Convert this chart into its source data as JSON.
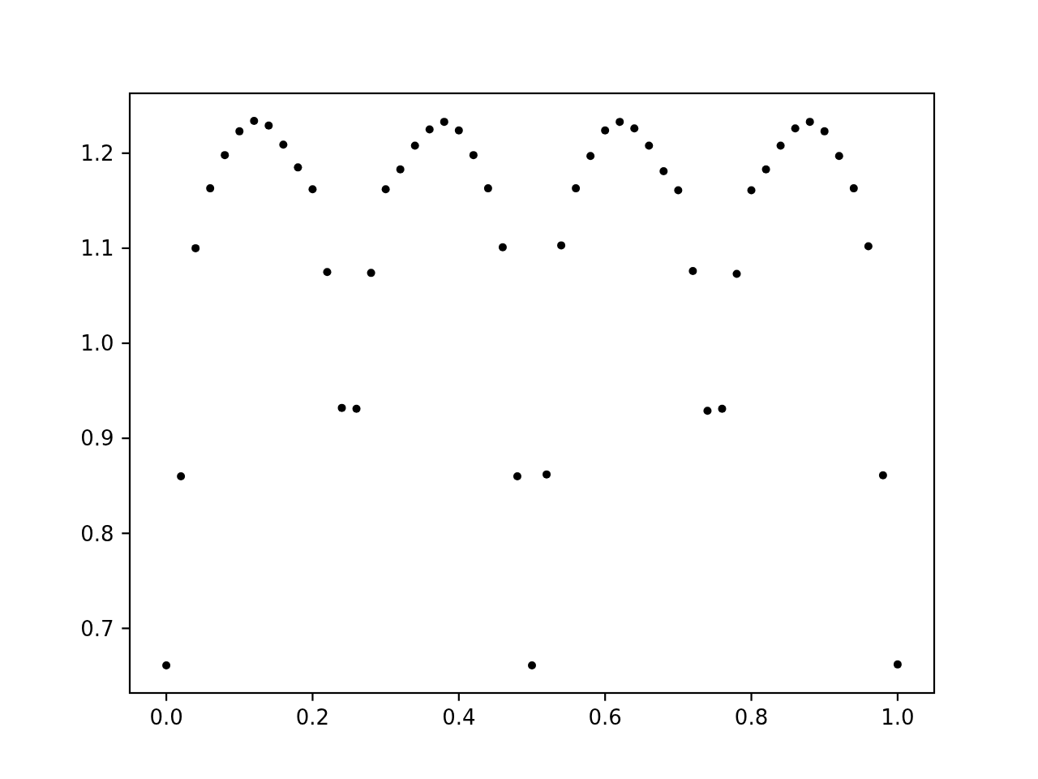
{
  "chart_data": {
    "type": "scatter",
    "marker": "circle",
    "color": "#000000",
    "x": [
      0,
      0.02,
      0.04,
      0.06,
      0.08,
      0.1,
      0.12,
      0.14,
      0.16,
      0.18,
      0.2,
      0.22,
      0.24,
      0.26,
      0.28,
      0.3,
      0.32,
      0.34,
      0.36,
      0.38,
      0.4,
      0.42,
      0.44,
      0.46,
      0.48,
      0.5,
      0.52,
      0.54,
      0.56,
      0.58,
      0.6,
      0.62,
      0.64,
      0.66,
      0.68,
      0.7,
      0.72,
      0.74,
      0.76,
      0.78,
      0.8,
      0.82,
      0.84,
      0.86,
      0.88,
      0.9,
      0.92,
      0.94,
      0.96,
      0.98,
      1
    ],
    "values": [
      0.661,
      0.86,
      1.1,
      1.163,
      1.198,
      1.223,
      1.234,
      1.229,
      1.209,
      1.185,
      1.162,
      1.075,
      0.932,
      0.931,
      1.074,
      1.162,
      1.183,
      1.208,
      1.225,
      1.233,
      1.224,
      1.198,
      1.163,
      1.101,
      0.86,
      0.661,
      0.862,
      1.103,
      1.163,
      1.197,
      1.224,
      1.233,
      1.226,
      1.208,
      1.181,
      1.161,
      1.076,
      0.929,
      0.931,
      1.073,
      1.161,
      1.183,
      1.208,
      1.226,
      1.233,
      1.223,
      1.197,
      1.163,
      1.102,
      0.861,
      0.662
    ],
    "xlim": [
      -0.05,
      1.05
    ],
    "ylim": [
      0.632,
      1.263
    ],
    "xticks": [
      {
        "value": 0,
        "label": "0.0"
      },
      0.2,
      0.4,
      0.6,
      0.8,
      {
        "value": 1,
        "label": "1.0"
      }
    ],
    "yticks": [
      0.7,
      0.8,
      0.9,
      {
        "value": 1,
        "label": "1.0"
      },
      1.1,
      1.2
    ]
  }
}
